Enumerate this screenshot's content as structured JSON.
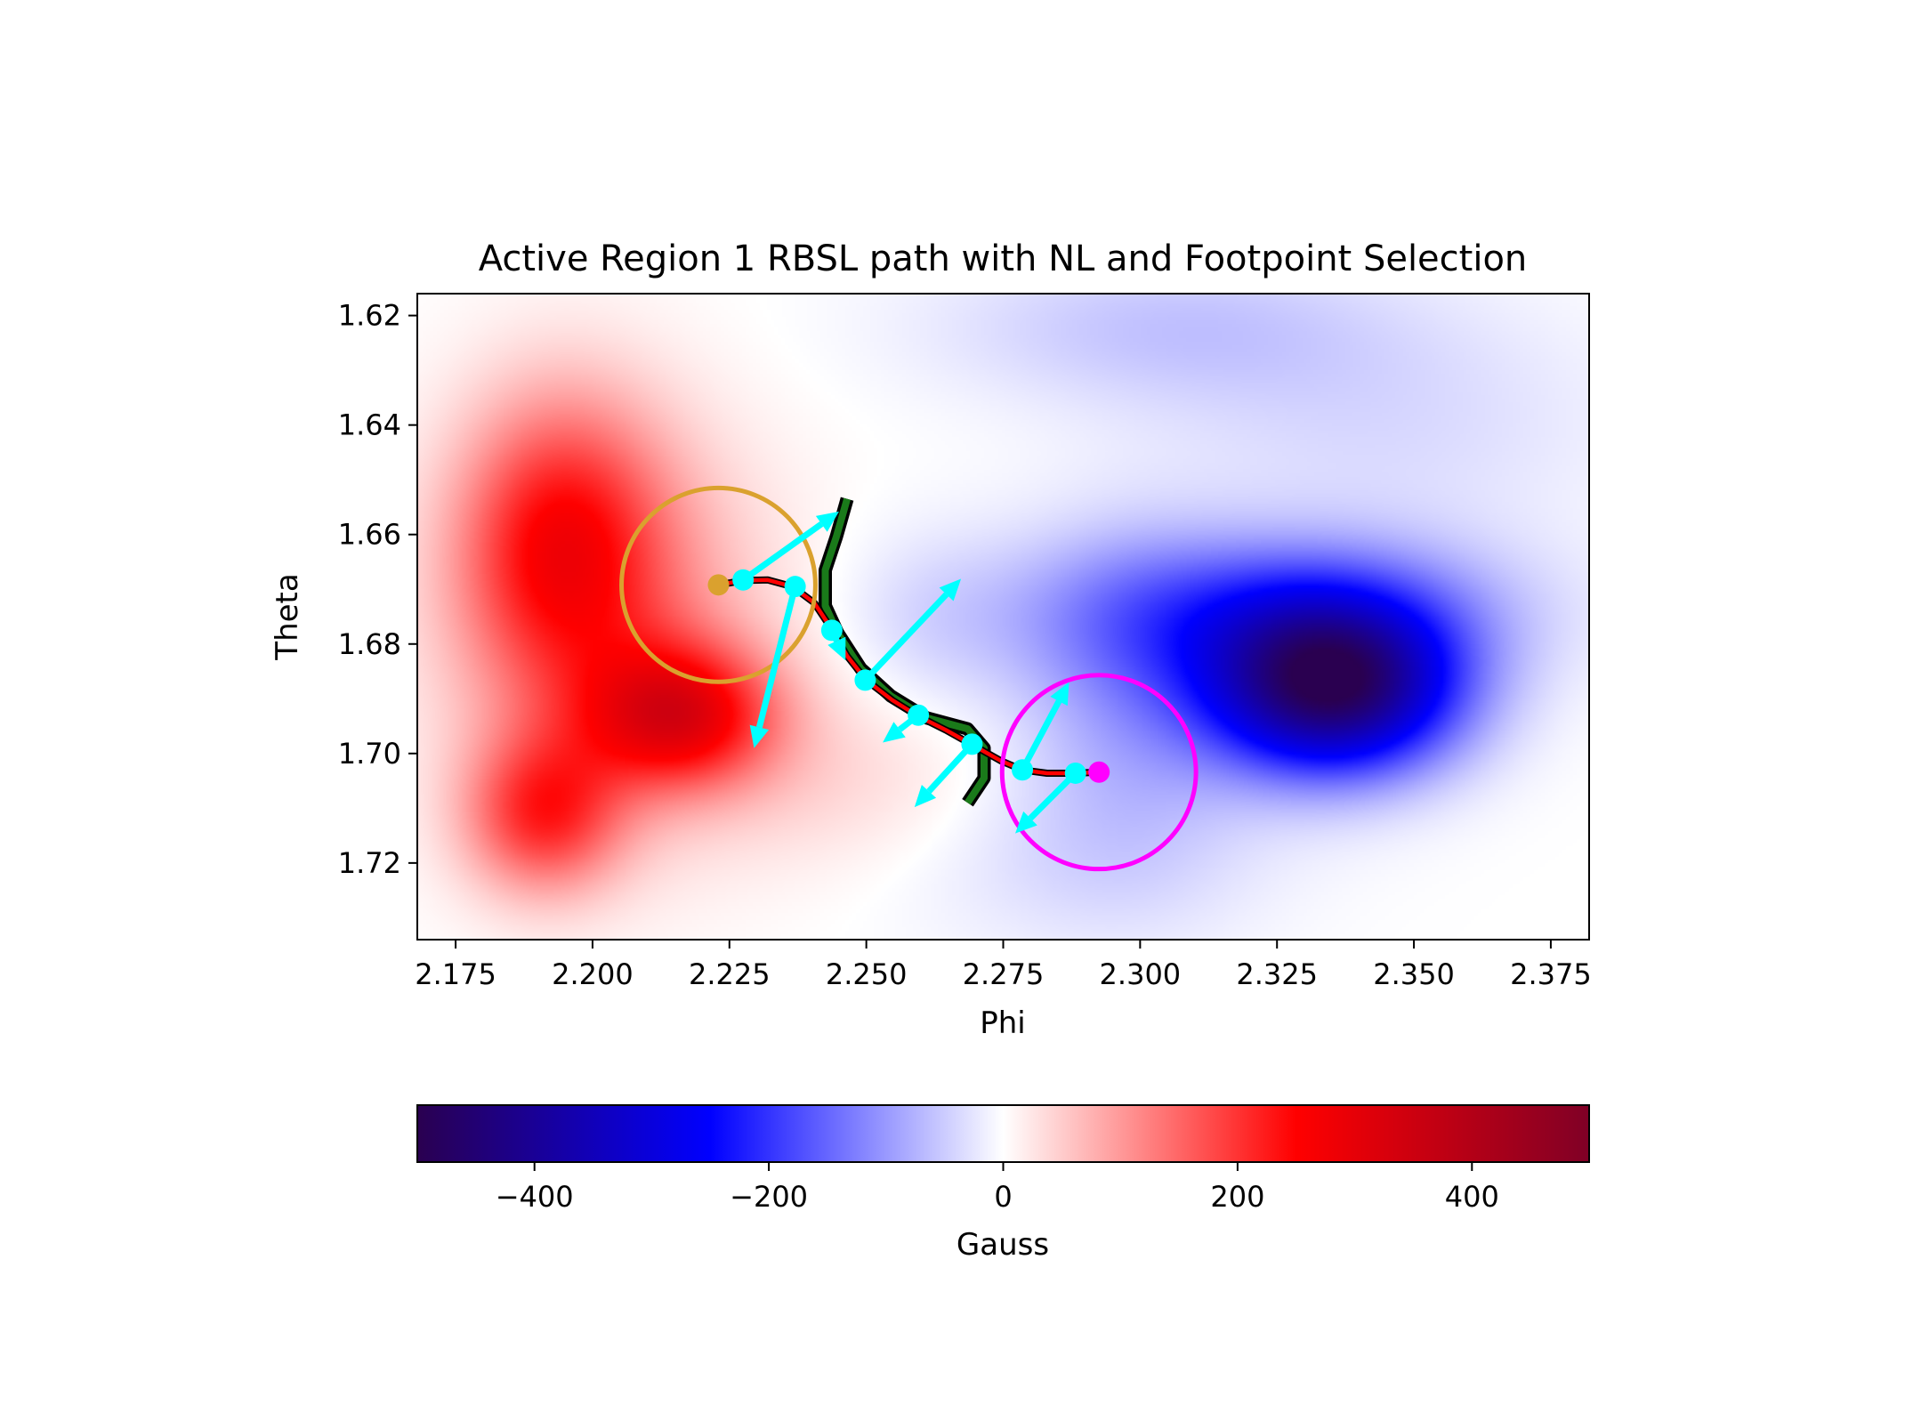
{
  "chart_data": [
    {
      "type": "heatmap",
      "title": "Active Region 1 RBSL path with NL and Footpoint Selection",
      "xlabel": "Phi",
      "ylabel": "Theta",
      "xlim": [
        2.168,
        2.382
      ],
      "ylim": [
        1.734,
        1.616
      ],
      "y_inverted": true,
      "xticks": [
        2.175,
        2.2,
        2.225,
        2.25,
        2.275,
        2.3,
        2.325,
        2.35,
        2.375
      ],
      "xtick_labels": [
        "2.175",
        "2.200",
        "2.225",
        "2.250",
        "2.275",
        "2.300",
        "2.325",
        "2.350",
        "2.375"
      ],
      "yticks": [
        1.62,
        1.64,
        1.66,
        1.68,
        1.7,
        1.72
      ],
      "ytick_labels": [
        "1.62",
        "1.64",
        "1.66",
        "1.68",
        "1.70",
        "1.72"
      ],
      "grid": false,
      "field_blobs_gauss": [
        {
          "phi": 2.194,
          "theta": 1.661,
          "amplitude": 200,
          "sigma_phi": 0.013,
          "sigma_theta": 0.018
        },
        {
          "phi": 2.216,
          "theta": 1.693,
          "amplitude": 250,
          "sigma_phi": 0.012,
          "sigma_theta": 0.009
        },
        {
          "phi": 2.191,
          "theta": 1.711,
          "amplitude": 190,
          "sigma_phi": 0.01,
          "sigma_theta": 0.01
        },
        {
          "phi": 2.203,
          "theta": 1.678,
          "amplitude": 110,
          "sigma_phi": 0.02,
          "sigma_theta": 0.025
        },
        {
          "phi": 2.245,
          "theta": 1.705,
          "amplitude": 35,
          "sigma_phi": 0.02,
          "sigma_theta": 0.012
        },
        {
          "phi": 2.335,
          "theta": 1.688,
          "amplitude": -470,
          "sigma_phi": 0.016,
          "sigma_theta": 0.011
        },
        {
          "phi": 2.323,
          "theta": 1.674,
          "amplitude": -150,
          "sigma_phi": 0.03,
          "sigma_theta": 0.01
        },
        {
          "phi": 2.298,
          "theta": 1.69,
          "amplitude": -80,
          "sigma_phi": 0.015,
          "sigma_theta": 0.02
        },
        {
          "phi": 2.305,
          "theta": 1.622,
          "amplitude": -55,
          "sigma_phi": 0.03,
          "sigma_theta": 0.01
        },
        {
          "phi": 2.345,
          "theta": 1.64,
          "amplitude": -35,
          "sigma_phi": 0.03,
          "sigma_theta": 0.015
        },
        {
          "phi": 2.262,
          "theta": 1.676,
          "amplitude": -30,
          "sigma_phi": 0.012,
          "sigma_theta": 0.012
        },
        {
          "phi": 2.29,
          "theta": 1.72,
          "amplitude": -30,
          "sigma_phi": 0.025,
          "sigma_theta": 0.012
        }
      ],
      "neutral_line": [
        {
          "phi": 2.2465,
          "theta": 1.6535
        },
        {
          "phi": 2.2445,
          "theta": 1.6605
        },
        {
          "phi": 2.2425,
          "theta": 1.6665
        },
        {
          "phi": 2.2425,
          "theta": 1.673
        },
        {
          "phi": 2.2448,
          "theta": 1.678
        },
        {
          "phi": 2.249,
          "theta": 1.6845
        },
        {
          "phi": 2.2545,
          "theta": 1.6895
        },
        {
          "phi": 2.261,
          "theta": 1.6935
        },
        {
          "phi": 2.2685,
          "theta": 1.6955
        },
        {
          "phi": 2.2715,
          "theta": 1.699
        },
        {
          "phi": 2.2715,
          "theta": 1.7045
        },
        {
          "phi": 2.2685,
          "theta": 1.709
        }
      ],
      "rbsl_path": [
        {
          "phi": 2.223,
          "theta": 1.6692
        },
        {
          "phi": 2.2275,
          "theta": 1.6684
        },
        {
          "phi": 2.232,
          "theta": 1.6683
        },
        {
          "phi": 2.2365,
          "theta": 1.6695
        },
        {
          "phi": 2.2405,
          "theta": 1.6725
        },
        {
          "phi": 2.2435,
          "theta": 1.677
        },
        {
          "phi": 2.2465,
          "theta": 1.6822
        },
        {
          "phi": 2.25,
          "theta": 1.6866
        },
        {
          "phi": 2.2548,
          "theta": 1.6903
        },
        {
          "phi": 2.2595,
          "theta": 1.6932
        },
        {
          "phi": 2.2645,
          "theta": 1.6957
        },
        {
          "phi": 2.2695,
          "theta": 1.6985
        },
        {
          "phi": 2.2745,
          "theta": 1.7013
        },
        {
          "phi": 2.2785,
          "theta": 1.703
        },
        {
          "phi": 2.283,
          "theta": 1.7036
        },
        {
          "phi": 2.288,
          "theta": 1.7036
        },
        {
          "phi": 2.2925,
          "theta": 1.7034
        }
      ],
      "sample_points": [
        {
          "phi": 2.2275,
          "theta": 1.6683,
          "dphi": 0.0175,
          "dtheta": -0.0125
        },
        {
          "phi": 2.237,
          "theta": 1.6695,
          "dphi": -0.0075,
          "dtheta": 0.0295
        },
        {
          "phi": 2.2437,
          "theta": 1.6775,
          "dphi": 0.0025,
          "dtheta": 0.0055
        },
        {
          "phi": 2.2498,
          "theta": 1.6866,
          "dphi": 0.0175,
          "dtheta": -0.0185
        },
        {
          "phi": 2.2595,
          "theta": 1.693,
          "dphi": -0.0065,
          "dtheta": 0.005
        },
        {
          "phi": 2.2693,
          "theta": 1.6983,
          "dphi": -0.0105,
          "dtheta": 0.0115
        },
        {
          "phi": 2.2785,
          "theta": 1.703,
          "dphi": 0.0085,
          "dtheta": -0.016
        },
        {
          "phi": 2.2882,
          "theta": 1.7036,
          "dphi": -0.011,
          "dtheta": 0.011
        }
      ],
      "footpoints": [
        {
          "phi": 2.223,
          "theta": 1.6692,
          "radius_phi": 0.0177,
          "color": "#daa12e"
        },
        {
          "phi": 2.2925,
          "theta": 1.7034,
          "radius_phi": 0.0177,
          "color": "#ff00ff"
        }
      ],
      "colors": {
        "path": "#ff0000",
        "path_edge": "#000000",
        "neutral_line": "#1a7a1a",
        "neutral_line_edge": "#000000",
        "vectors": "#00ffff"
      }
    },
    {
      "type": "colorbar",
      "label": "Gauss",
      "vmin": -500,
      "vmax": 500,
      "colormap": "seismic",
      "ticks": [
        -400,
        -200,
        0,
        200,
        400
      ],
      "tick_labels": [
        "−400",
        "−200",
        "0",
        "200",
        "400"
      ]
    }
  ]
}
